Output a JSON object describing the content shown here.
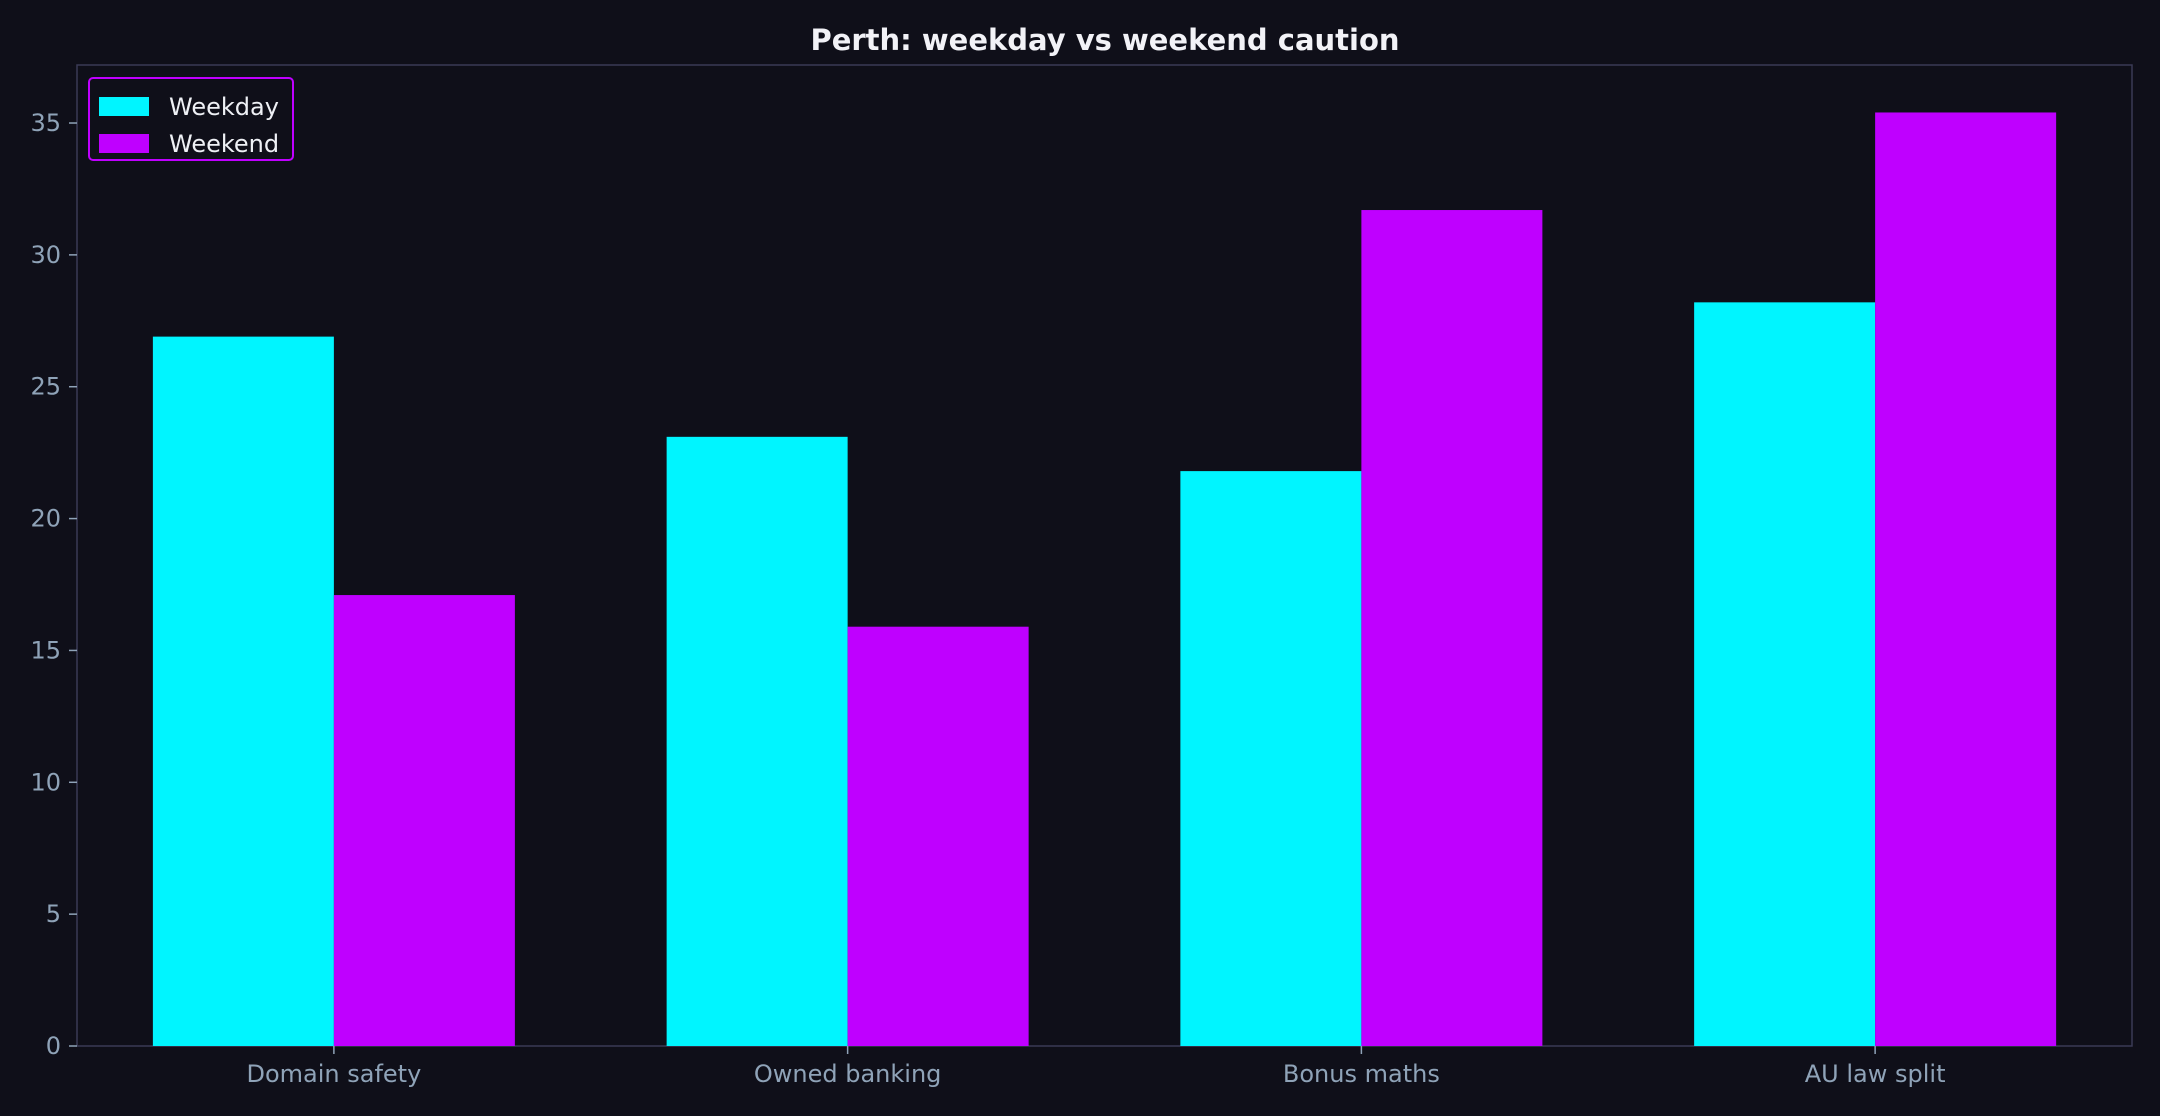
{
  "chart_data": {
    "type": "bar",
    "title": "Perth: weekday vs weekend caution",
    "xlabel": "",
    "ylabel": "",
    "categories": [
      "Domain safety",
      "Owned banking",
      "Bonus maths",
      "AU law split"
    ],
    "series": [
      {
        "name": "Weekday",
        "color": "#00f5ff",
        "values": [
          26.9,
          23.1,
          21.8,
          28.2
        ]
      },
      {
        "name": "Weekend",
        "color": "#bf00ff",
        "values": [
          17.1,
          15.9,
          31.7,
          35.4
        ]
      }
    ],
    "ylim": [
      0,
      37.2
    ],
    "yticks": [
      0,
      5,
      10,
      15,
      20,
      25,
      30,
      35
    ],
    "ytick_labels": [
      "0",
      "5",
      "10",
      "15",
      "20",
      "25",
      "30",
      "35"
    ],
    "grid": false,
    "legend": {
      "position": "top-left",
      "border_color": "#bf00ff"
    },
    "colors": {
      "background": "#0f0f19",
      "axes_border": "#3a3a55",
      "tick_label": "#8fa3b8",
      "title": "#f2f2f7"
    }
  }
}
